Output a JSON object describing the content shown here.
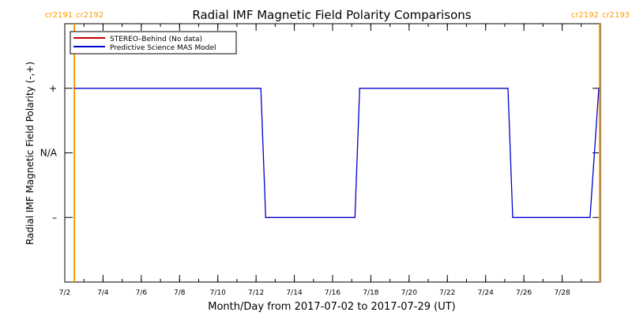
{
  "chart_data": {
    "type": "line",
    "title": "Radial IMF Magnetic Field Polarity Comparisons",
    "xlabel": "Month/Day from 2017-07-02 to 2017-07-29 (UT)",
    "ylabel": "Radial IMF Magnetic Field Polarity (-,+)",
    "xlim": [
      "2017-07-02",
      "2017-07-30"
    ],
    "ylim": [
      -2,
      2
    ],
    "y_ticks": [
      {
        "value": 1,
        "label": "+"
      },
      {
        "value": 0,
        "label": "N/A"
      },
      {
        "value": -1,
        "label": "–"
      }
    ],
    "x_ticks": [
      {
        "date": "2017-07-02",
        "label": "7/2"
      },
      {
        "date": "2017-07-04",
        "label": "7/4"
      },
      {
        "date": "2017-07-06",
        "label": "7/6"
      },
      {
        "date": "2017-07-08",
        "label": "7/8"
      },
      {
        "date": "2017-07-10",
        "label": "7/10"
      },
      {
        "date": "2017-07-12",
        "label": "7/12"
      },
      {
        "date": "2017-07-14",
        "label": "7/14"
      },
      {
        "date": "2017-07-16",
        "label": "7/16"
      },
      {
        "date": "2017-07-18",
        "label": "7/18"
      },
      {
        "date": "2017-07-20",
        "label": "7/20"
      },
      {
        "date": "2017-07-22",
        "label": "7/22"
      },
      {
        "date": "2017-07-24",
        "label": "7/24"
      },
      {
        "date": "2017-07-26",
        "label": "7/26"
      },
      {
        "date": "2017-07-28",
        "label": "7/28"
      }
    ],
    "minor_ticks_per_day": 1,
    "legend_position": "top-left",
    "series": [
      {
        "name": "STEREO–Behind (No data)",
        "color": "#c00000",
        "points": []
      },
      {
        "name": "Predictive Science MAS Model",
        "color": "#0000cc",
        "points": [
          {
            "x": "2017-07-02T12:00",
            "y": 1
          },
          {
            "x": "2017-07-12T06:00",
            "y": 1
          },
          {
            "x": "2017-07-12T12:00",
            "y": -1
          },
          {
            "x": "2017-07-17T04:00",
            "y": -1
          },
          {
            "x": "2017-07-17T10:00",
            "y": 1
          },
          {
            "x": "2017-07-25T04:00",
            "y": 1
          },
          {
            "x": "2017-07-25T10:00",
            "y": -1
          },
          {
            "x": "2017-07-29T11:00",
            "y": -1
          },
          {
            "x": "2017-07-29T22:00",
            "y": 1
          }
        ]
      }
    ],
    "carrington_markers": [
      {
        "date": "2017-07-02T12:00",
        "label_left": "cr2191",
        "label_right": "cr2192",
        "color": "#ff9900"
      },
      {
        "date": "2017-07-29T23:00",
        "label_left": "cr2192",
        "label_right": "cr2193",
        "color": "#ff9900"
      }
    ]
  }
}
